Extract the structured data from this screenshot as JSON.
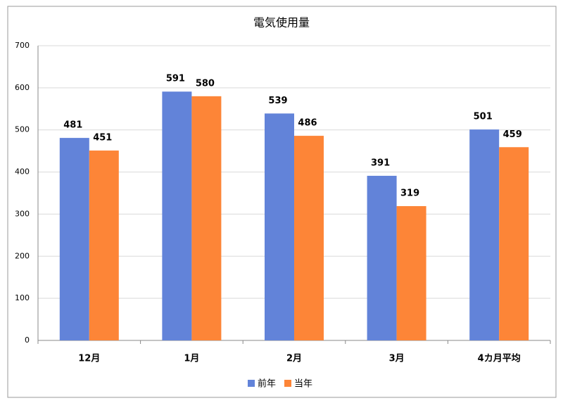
{
  "chart_data": {
    "type": "bar",
    "title": "電気使用量",
    "categories": [
      "12月",
      "1月",
      "2月",
      "3月",
      "4カ月平均"
    ],
    "series": [
      {
        "name": "前年",
        "color": "#6283d9",
        "values": [
          481,
          591,
          539,
          391,
          501
        ]
      },
      {
        "name": "当年",
        "color": "#fd8537",
        "values": [
          451,
          580,
          486,
          319,
          459
        ]
      }
    ],
    "ylim": [
      0,
      700
    ],
    "yticks": [
      0,
      100,
      200,
      300,
      400,
      500,
      600,
      700
    ],
    "grid": true,
    "legend": "bottom"
  }
}
